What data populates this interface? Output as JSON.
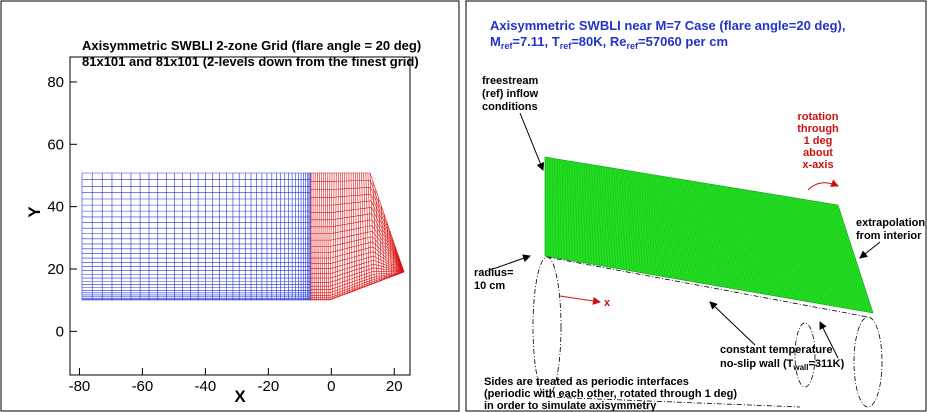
{
  "left_panel": {
    "title_lines": [
      "Axisymmetric SWBLI 2-zone Grid (flare angle = 20 deg)",
      "81x101 and 81x101 (2-levels down from the finest grid)"
    ],
    "x_label": "X",
    "y_label": "Y",
    "xlim": [
      -83,
      25
    ],
    "ylim": [
      -14,
      88
    ],
    "xticks": [
      -80,
      -60,
      -40,
      -20,
      0,
      20
    ],
    "yticks": [
      0,
      20,
      40,
      60,
      80
    ]
  },
  "right_panel": {
    "title": "Axisymmetric SWBLI near M=7 Case (flare angle=20 deg),",
    "subtitle_parts": [
      "M",
      "ref",
      "=7.11, T",
      "ref",
      "=80K, Re",
      "ref",
      "=57060 per cm"
    ],
    "freestream_lines": [
      "freestream",
      "(ref) inflow",
      "conditions"
    ],
    "rotation_lines": [
      "rotation",
      "through",
      "1 deg",
      "about",
      "x-axis"
    ],
    "extrapolation_lines": [
      "extrapolation",
      "from interior"
    ],
    "radius_lines": [
      "radius=",
      "10 cm"
    ],
    "axis_x": "x",
    "wall_line1": "constant temperature",
    "wall_parts": [
      "no-slip wall (T",
      "wall",
      "=311K)"
    ],
    "sides_lines": [
      "Sides are treated as periodic interfaces",
      "(periodic with each other, rotated through 1 deg)",
      "in order to simulate axisymmetry"
    ]
  }
}
